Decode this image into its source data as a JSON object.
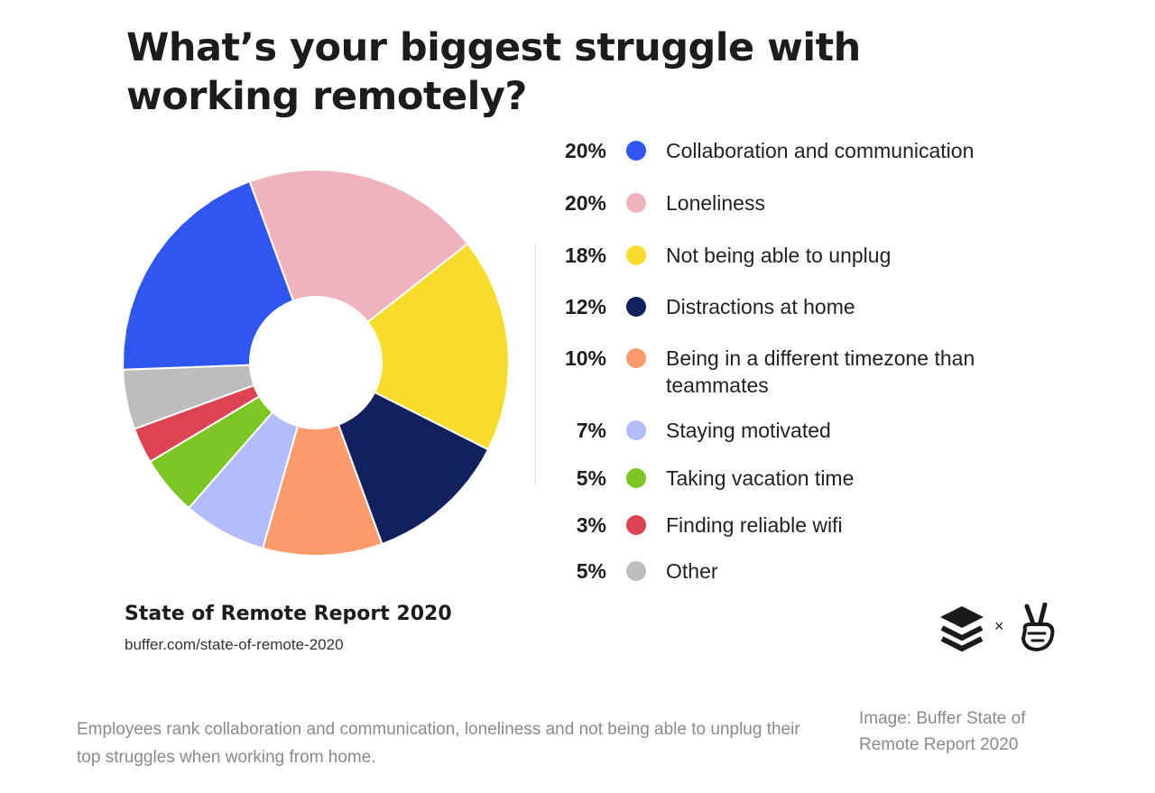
{
  "title": "What’s your biggest struggle with working remotely?",
  "chart_data": {
    "type": "pie",
    "categories": [
      "Collaboration and communication",
      "Loneliness",
      "Not being able to unplug",
      "Distractions at home",
      "Being in a different timezone than teammates",
      "Staying motivated",
      "Taking vacation time",
      "Finding reliable wifi",
      "Other"
    ],
    "values": [
      20,
      20,
      18,
      12,
      10,
      7,
      5,
      3,
      5
    ],
    "labels": [
      "20%",
      "20%",
      "18%",
      "12%",
      "10%",
      "7%",
      "5%",
      "3%",
      "5%"
    ],
    "colors": [
      "#2f57f0",
      "#f0b3bd",
      "#f8dc2b",
      "#13205e",
      "#fc9b6b",
      "#b3bdfb",
      "#7ec623",
      "#dd4453",
      "#bdbdbd"
    ],
    "legend_position": "right"
  },
  "footer": {
    "report_title": "State of Remote Report 2020",
    "report_url": "buffer.com/state-of-remote-2020",
    "times": "×",
    "logos": [
      "buffer-logo",
      "angellist-peace-logo"
    ]
  },
  "caption": "Employees rank collaboration and communication, loneliness and not being able to unplug their top struggles when working from home.",
  "credit": "Image: Buffer State of Remote Report 2020"
}
